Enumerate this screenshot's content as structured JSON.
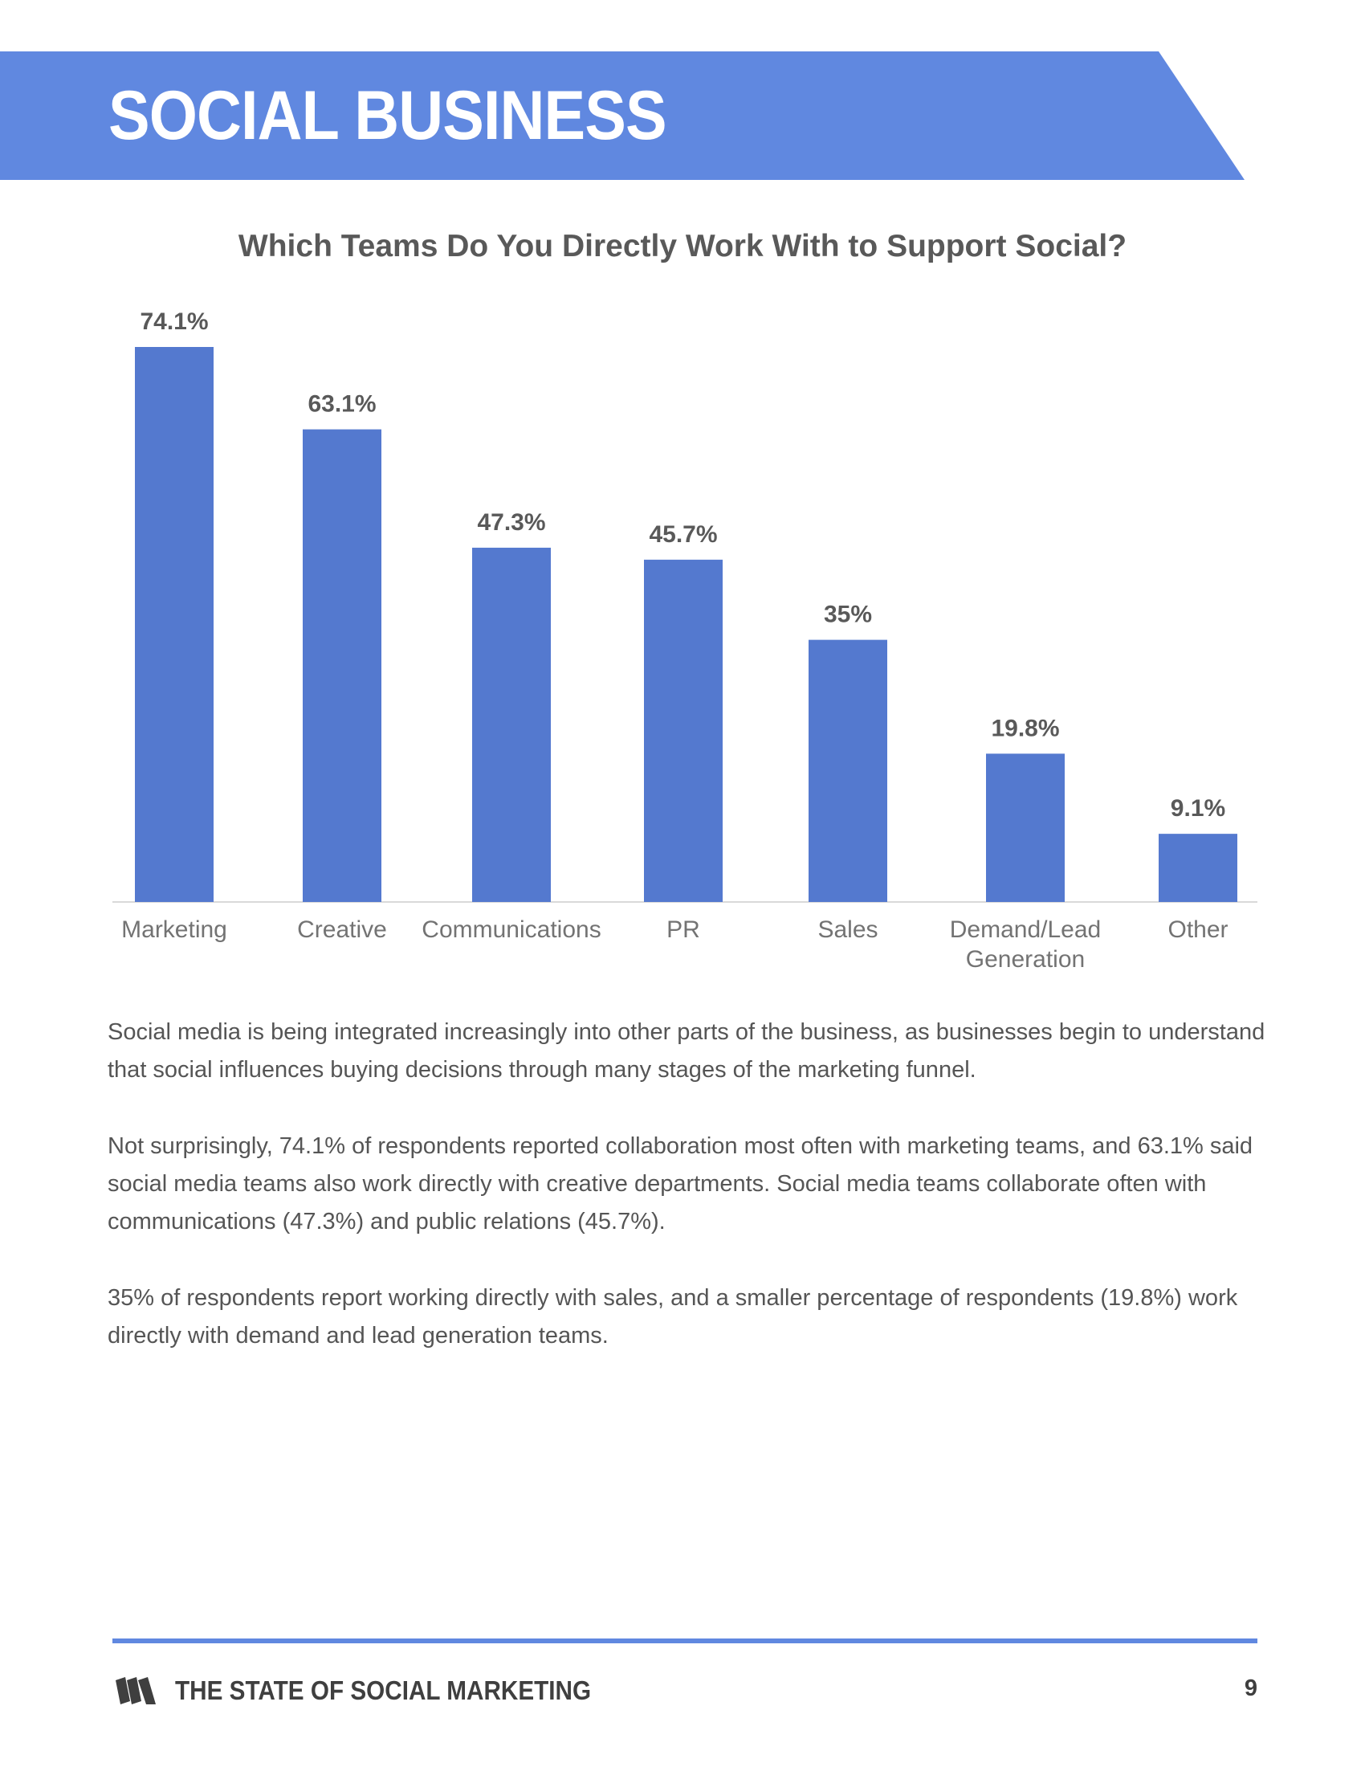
{
  "header": {
    "title": "SOCIAL BUSINESS"
  },
  "chart_data": {
    "type": "bar",
    "title": "Which Teams Do You Directly Work With to Support Social?",
    "categories": [
      "Marketing",
      "Creative",
      "Communications",
      "PR",
      "Sales",
      "Demand/Lead Generation",
      "Other"
    ],
    "category_lines": [
      [
        "Marketing"
      ],
      [
        "Creative"
      ],
      [
        "Communications"
      ],
      [
        "PR"
      ],
      [
        "Sales"
      ],
      [
        "Demand/Lead",
        "Generation"
      ],
      [
        "Other"
      ]
    ],
    "values": [
      74.1,
      63.1,
      47.3,
      45.7,
      35,
      19.8,
      9.1
    ],
    "data_labels": [
      "74.1%",
      "63.1%",
      "47.3%",
      "45.7%",
      "35%",
      "19.8%",
      "9.1%"
    ],
    "ylim": [
      0,
      74.1
    ],
    "grid": false,
    "bar_color": "#5479cf"
  },
  "body": {
    "paragraphs": [
      "Social media is being integrated increasingly into other parts of the business, as businesses begin to understand that social influences buying decisions through many stages of the marketing funnel.",
      "Not surprisingly, 74.1% of respondents reported collaboration most often with marketing teams, and 63.1% said social media teams also work directly with creative departments. Social media teams collaborate often with communications (47.3%) and public relations (45.7%).",
      "35% of respondents report working directly with sales, and a smaller percentage of respondents (19.8%) work directly with demand and lead generation teams."
    ]
  },
  "footer": {
    "logo_icon": "sprout-logo-icon",
    "text": "THE STATE OF SOCIAL MARKETING",
    "page_number": "9"
  },
  "colors": {
    "accent": "#6088e0",
    "bar": "#5479cf",
    "text": "#555555"
  }
}
